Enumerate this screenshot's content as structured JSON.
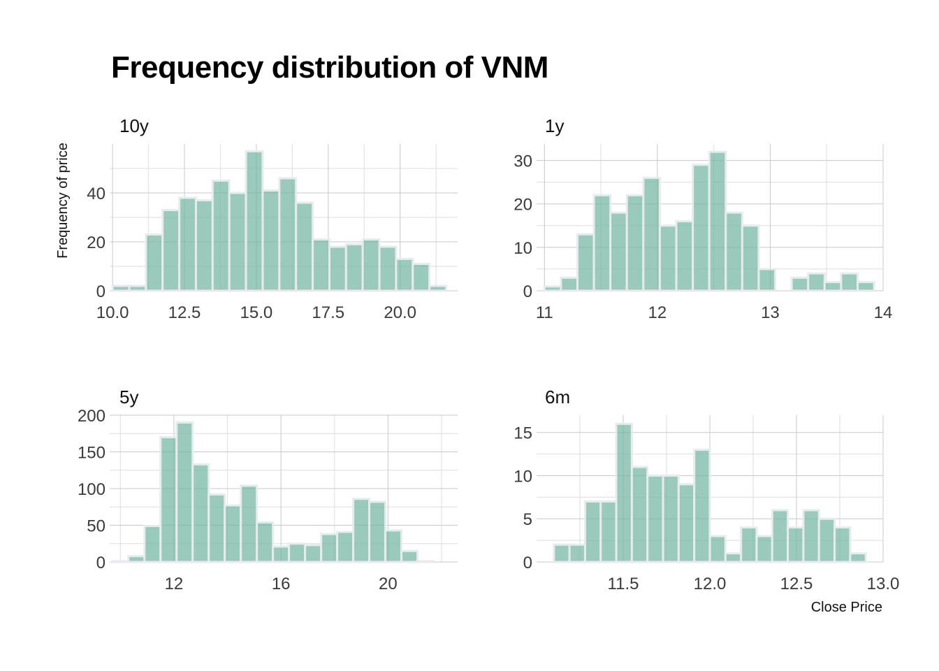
{
  "title": "Frequency distribution of VNM",
  "axis_titles": {
    "x": "Close Price",
    "y": "Frequency of price"
  },
  "colors": {
    "bar_fill": "#6fb39f",
    "bar_stroke": "#e8eaee",
    "grid": "#c8c8c8"
  },
  "chart_data": [
    {
      "type": "bar",
      "facet": "10y",
      "bin_edges": [
        10.0,
        10.58,
        11.16,
        11.74,
        12.32,
        12.9,
        13.48,
        14.06,
        14.64,
        15.22,
        15.8,
        16.38,
        16.96,
        17.54,
        18.12,
        18.7,
        19.28,
        19.86,
        20.44,
        21.02,
        21.6
      ],
      "values": [
        2,
        2,
        23,
        33,
        38,
        37,
        45,
        40,
        57,
        41,
        46,
        36,
        21,
        18,
        19,
        21,
        18,
        13,
        11,
        2
      ],
      "xlim": [
        9.9,
        22.0
      ],
      "ylim": [
        0,
        60
      ],
      "x_ticks": [
        10.0,
        12.5,
        15.0,
        17.5,
        20.0
      ],
      "x_tick_labels": [
        "10.0",
        "12.5",
        "15.0",
        "17.5",
        "20.0"
      ],
      "y_ticks": [
        0,
        20,
        40
      ],
      "y_tick_labels": [
        "0",
        "20",
        "40"
      ]
    },
    {
      "type": "bar",
      "facet": "1y",
      "bin_edges": [
        11.0,
        11.146,
        11.292,
        11.438,
        11.584,
        11.73,
        11.876,
        12.022,
        12.168,
        12.314,
        12.46,
        12.606,
        12.752,
        12.898,
        13.044,
        13.19,
        13.336,
        13.482,
        13.628,
        13.774,
        13.92
      ],
      "values": [
        1,
        3,
        13,
        22,
        18,
        22,
        26,
        15,
        16,
        29,
        32,
        18,
        15,
        5,
        0,
        3,
        4,
        2,
        4,
        2
      ],
      "xlim": [
        10.93,
        14.0
      ],
      "ylim": [
        0,
        33.8
      ],
      "x_ticks": [
        11,
        12,
        13,
        14
      ],
      "x_tick_labels": [
        "11",
        "12",
        "13",
        "14"
      ],
      "y_ticks": [
        0,
        10,
        20,
        30
      ],
      "y_tick_labels": [
        "0",
        "10",
        "20",
        "30"
      ]
    },
    {
      "type": "bar",
      "facet": "5y",
      "bin_edges": [
        9.7,
        10.3,
        10.9,
        11.5,
        12.1,
        12.7,
        13.3,
        13.9,
        14.5,
        15.1,
        15.7,
        16.3,
        16.9,
        17.5,
        18.1,
        18.7,
        19.3,
        19.9,
        20.5,
        21.1,
        21.7,
        22.3
      ],
      "values": [
        1,
        8,
        49,
        170,
        190,
        133,
        92,
        77,
        104,
        54,
        21,
        25,
        23,
        38,
        41,
        86,
        82,
        43,
        15,
        1,
        0
      ],
      "xlim": [
        9.6,
        22.6
      ],
      "ylim": [
        0,
        200
      ],
      "x_ticks": [
        12,
        16,
        20
      ],
      "x_tick_labels": [
        "12",
        "16",
        "20"
      ],
      "y_ticks": [
        0,
        50,
        100,
        150,
        200
      ],
      "y_tick_labels": [
        "0",
        "50",
        "100",
        "150",
        "200"
      ]
    },
    {
      "type": "bar",
      "facet": "6m",
      "bin_edges": [
        11.1,
        11.19,
        11.28,
        11.37,
        11.46,
        11.55,
        11.64,
        11.73,
        11.82,
        11.91,
        12.0,
        12.09,
        12.18,
        12.27,
        12.36,
        12.45,
        12.54,
        12.63,
        12.72,
        12.81,
        12.9
      ],
      "values": [
        2,
        2,
        7,
        7,
        16,
        11,
        10,
        10,
        9,
        13,
        3,
        1,
        4,
        3,
        6,
        4,
        6,
        5,
        4,
        1
      ],
      "xlim": [
        11.0,
        13.0
      ],
      "ylim": [
        0,
        17
      ],
      "x_ticks": [
        11.5,
        12.0,
        12.5,
        13.0
      ],
      "x_tick_labels": [
        "11.5",
        "12.0",
        "12.5",
        "13.0"
      ],
      "y_ticks": [
        0,
        5,
        10,
        15
      ],
      "y_tick_labels": [
        "0",
        "5",
        "10",
        "15"
      ]
    }
  ]
}
